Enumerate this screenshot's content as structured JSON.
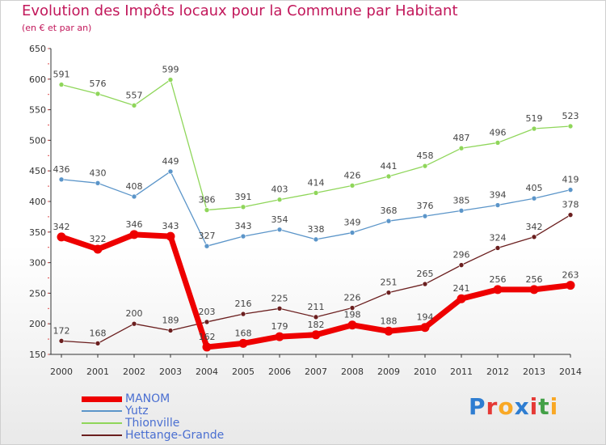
{
  "header": {
    "title": "Evolution des Impôts locaux pour la Commune par Habitant",
    "subtitle": "(en € et par an)"
  },
  "logo": {
    "text": "Proxiti",
    "colors": [
      "#2e7dd1",
      "#e53935",
      "#f9a825",
      "#2e7dd1",
      "#e53935",
      "#43a047",
      "#f9a825"
    ]
  },
  "chart_data": {
    "type": "line",
    "x": [
      "2000",
      "2001",
      "2002",
      "2003",
      "2004",
      "2005",
      "2006",
      "2007",
      "2008",
      "2009",
      "2010",
      "2011",
      "2012",
      "2013",
      "2014"
    ],
    "ylim": [
      150,
      650
    ],
    "yticks": [
      150,
      200,
      250,
      300,
      350,
      400,
      450,
      500,
      550,
      600,
      650
    ],
    "grid": false,
    "legend_position": "bottom-left",
    "series": [
      {
        "name": "MANOM",
        "color": "#ee0000",
        "width": 7,
        "values": [
          342,
          322,
          346,
          343,
          162,
          168,
          179,
          182,
          198,
          188,
          194,
          241,
          256,
          256,
          263
        ]
      },
      {
        "name": "Yutz",
        "color": "#5b95c9",
        "width": 1.3,
        "values": [
          436,
          430,
          408,
          449,
          327,
          343,
          354,
          338,
          349,
          368,
          376,
          385,
          394,
          405,
          419
        ]
      },
      {
        "name": "Thionville",
        "color": "#8fd65a",
        "width": 1.3,
        "values": [
          591,
          576,
          557,
          599,
          386,
          391,
          403,
          414,
          426,
          441,
          458,
          487,
          496,
          519,
          523
        ]
      },
      {
        "name": "Hettange-Grande",
        "color": "#6b1f1f",
        "width": 1.3,
        "values": [
          172,
          168,
          200,
          189,
          203,
          216,
          225,
          211,
          226,
          251,
          265,
          296,
          324,
          342,
          378
        ]
      }
    ]
  }
}
